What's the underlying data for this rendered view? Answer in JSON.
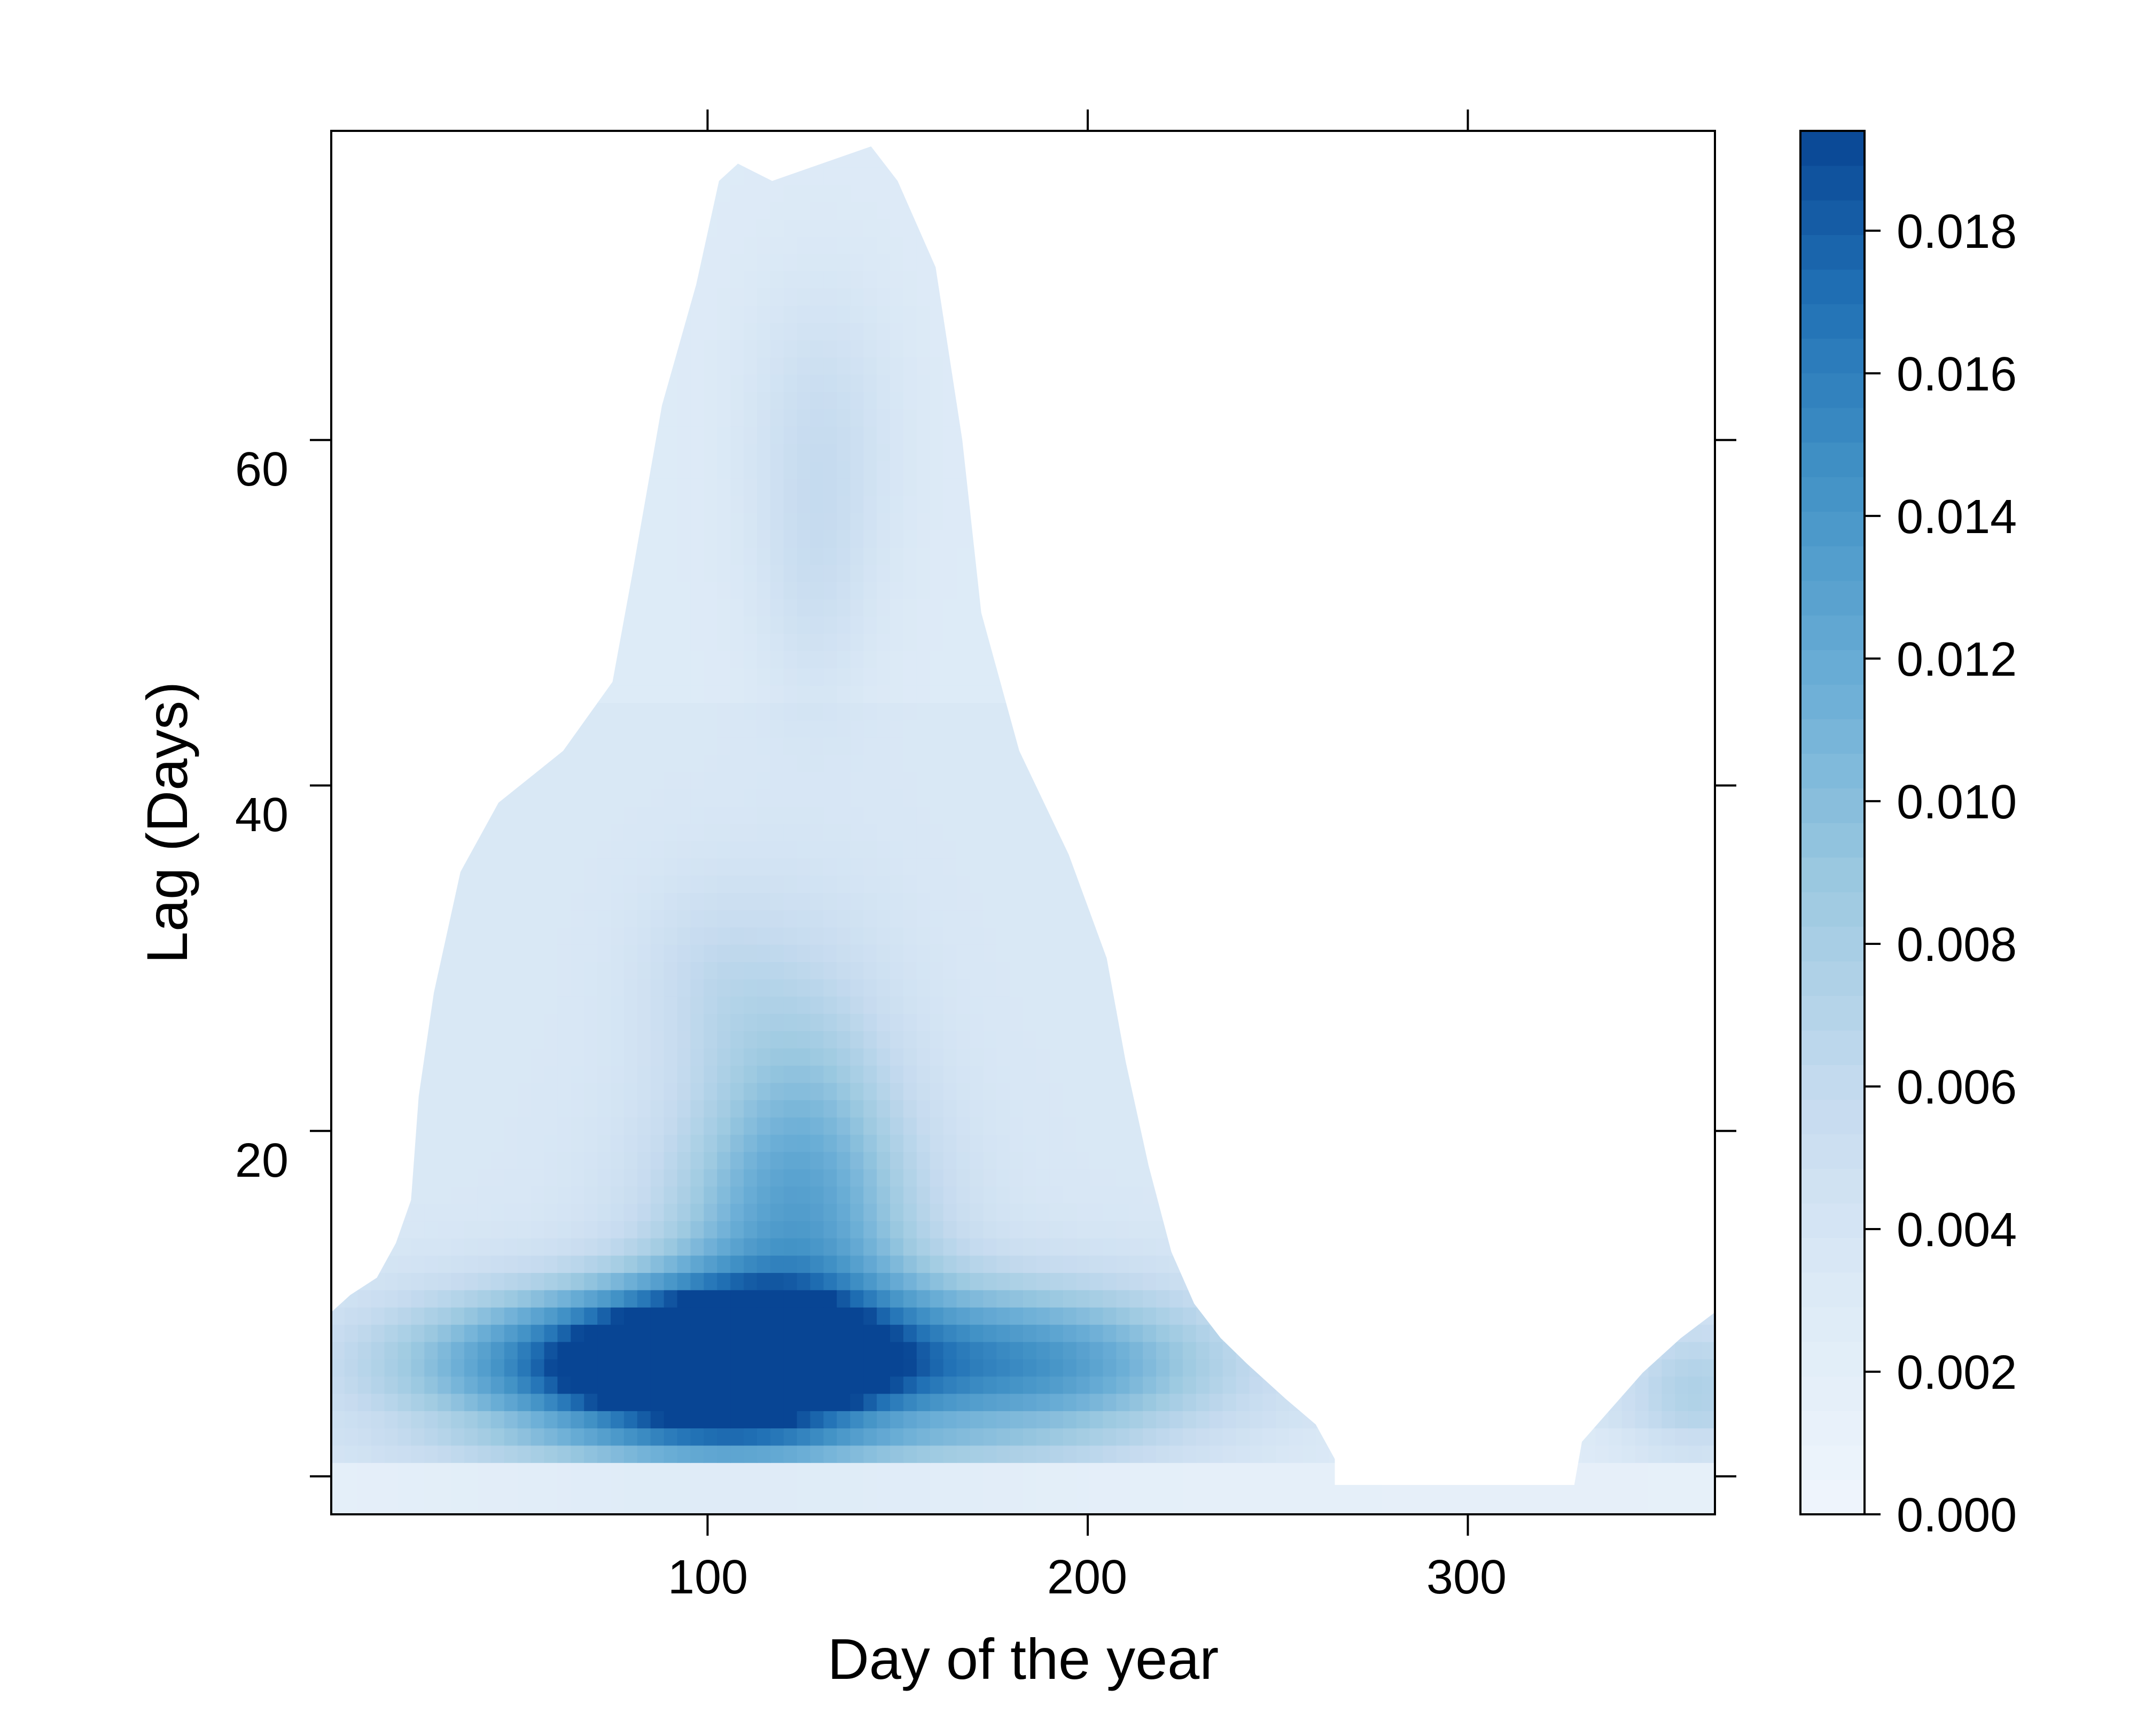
{
  "chart_data": {
    "type": "heatmap",
    "title": "",
    "xlabel": "Day of the year",
    "ylabel": "Lag (Days)",
    "xlim": [
      1,
      365
    ],
    "ylim": [
      -2.2,
      77.9
    ],
    "xticks": [
      "100",
      "200",
      "300"
    ],
    "xtick_values": [
      100,
      200,
      300
    ],
    "yticks": [
      "20",
      "40",
      "60"
    ],
    "ytick_values": [
      20,
      40,
      60
    ],
    "ybottom_tick_value": 0,
    "colorbar": {
      "ticks": [
        "0.000",
        "0.002",
        "0.004",
        "0.006",
        "0.008",
        "0.010",
        "0.012",
        "0.014",
        "0.016",
        "0.018"
      ],
      "tick_values": [
        0.0,
        0.002,
        0.004,
        0.006,
        0.008,
        0.01,
        0.012,
        0.014,
        0.016,
        0.018
      ],
      "range": [
        0.0,
        0.0194
      ],
      "low_color": "#eef4fb",
      "high_color": "#08458f"
    },
    "support_outline": [
      [
        1,
        9.5
      ],
      [
        6,
        10.5
      ],
      [
        13,
        11.5
      ],
      [
        18,
        13.5
      ],
      [
        22,
        16
      ],
      [
        24,
        22
      ],
      [
        28,
        28
      ],
      [
        35,
        35
      ],
      [
        45,
        39
      ],
      [
        62,
        42
      ],
      [
        75,
        46
      ],
      [
        80,
        52
      ],
      [
        88,
        62
      ],
      [
        97,
        69
      ],
      [
        103,
        75
      ],
      [
        108,
        76
      ],
      [
        117,
        75
      ],
      [
        130,
        76
      ],
      [
        143,
        77
      ],
      [
        150,
        75
      ],
      [
        160,
        70
      ],
      [
        167,
        60
      ],
      [
        172,
        50
      ],
      [
        182,
        42
      ],
      [
        195,
        36
      ],
      [
        205,
        30
      ],
      [
        210,
        24
      ],
      [
        216,
        18
      ],
      [
        222,
        13
      ],
      [
        228,
        10
      ],
      [
        235,
        8
      ],
      [
        242,
        6.5
      ],
      [
        252,
        4.5
      ],
      [
        260,
        3
      ],
      [
        265,
        1
      ],
      [
        265,
        -0.5
      ],
      [
        328,
        -0.5
      ],
      [
        330,
        2
      ],
      [
        338,
        4
      ],
      [
        346,
        6
      ],
      [
        356,
        8
      ],
      [
        365,
        9.5
      ]
    ],
    "hotspots": [
      {
        "day": 106,
        "lag": 6.5,
        "value": 0.0192,
        "spread_day": 26,
        "spread_lag": 2.8
      },
      {
        "day": 75,
        "lag": 6.5,
        "value": 0.0128,
        "spread_day": 40,
        "spread_lag": 3.0
      },
      {
        "day": 180,
        "lag": 6.5,
        "value": 0.0108,
        "spread_day": 38,
        "spread_lag": 3.2
      },
      {
        "day": 122,
        "lag": 13.5,
        "value": 0.0075,
        "spread_day": 25,
        "spread_lag": 6
      },
      {
        "day": 125,
        "lag": 22,
        "value": 0.004,
        "spread_day": 18,
        "spread_lag": 7
      },
      {
        "day": 100,
        "lag": 29,
        "value": 0.0018,
        "spread_day": 14,
        "spread_lag": 4
      },
      {
        "day": 130,
        "lag": 60,
        "value": 0.0025,
        "spread_day": 13,
        "spread_lag": 6
      },
      {
        "day": 128,
        "lag": 51,
        "value": 0.0015,
        "spread_day": 10,
        "spread_lag": 5
      },
      {
        "day": 360,
        "lag": 5,
        "value": 0.004,
        "spread_day": 14,
        "spread_lag": 3
      }
    ]
  }
}
